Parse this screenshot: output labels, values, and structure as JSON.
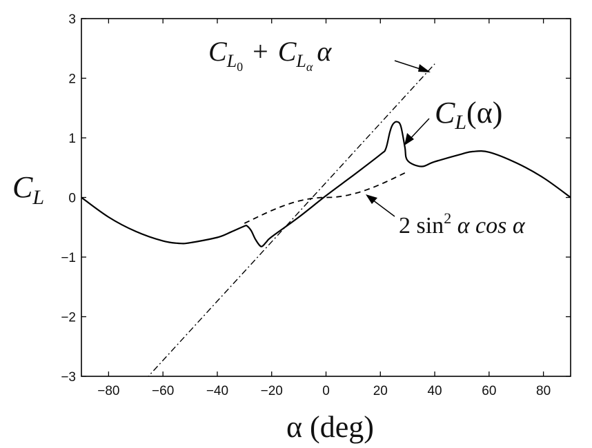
{
  "chart_data": {
    "type": "line",
    "title": "",
    "xlabel": "α (deg)",
    "ylabel": "C_L",
    "xlim": [
      -90,
      90
    ],
    "ylim": [
      -3,
      3
    ],
    "xticks": [
      -80,
      -60,
      -40,
      -20,
      0,
      20,
      40,
      60,
      80
    ],
    "yticks": [
      -3,
      -2,
      -1,
      0,
      1,
      2,
      3
    ],
    "xtick_labels": [
      "−80",
      "−60",
      "−40",
      "−20",
      "0",
      "20",
      "40",
      "60",
      "80"
    ],
    "ytick_labels": [
      "−3",
      "−2",
      "−1",
      "0",
      "1",
      "2",
      "3"
    ],
    "grid": false,
    "series": [
      {
        "name": "C_L(α)",
        "style": "solid",
        "x": [
          -90,
          -80,
          -70,
          -60,
          -54,
          -50,
          -40,
          -35,
          -30,
          -29,
          -27.5,
          -26,
          -24.5,
          -23.5,
          -22,
          -20,
          -10,
          0,
          10,
          20,
          22,
          23.5,
          24.5,
          26,
          27.5,
          29,
          30,
          35,
          40,
          50,
          54,
          60,
          70,
          80,
          90
        ],
        "y": [
          0,
          -0.33,
          -0.57,
          -0.73,
          -0.77,
          -0.76,
          -0.67,
          -0.58,
          -0.48,
          -0.48,
          -0.56,
          -0.7,
          -0.8,
          -0.82,
          -0.75,
          -0.66,
          -0.33,
          0.03,
          0.37,
          0.72,
          0.82,
          1.1,
          1.22,
          1.27,
          1.2,
          0.85,
          0.62,
          0.52,
          0.6,
          0.73,
          0.77,
          0.76,
          0.58,
          0.33,
          0
        ]
      },
      {
        "name": "C_{L0} + C_{Lα} α",
        "style": "dashdot",
        "x": [
          -70,
          40
        ],
        "y": [
          -3.23,
          2.24
        ]
      },
      {
        "name": "2 sin² α cos α",
        "style": "dashed",
        "x": [
          -30,
          -20,
          -10,
          0,
          10,
          20,
          30
        ],
        "y": [
          -0.43,
          -0.22,
          -0.06,
          0,
          0.06,
          0.22,
          0.43
        ]
      }
    ],
    "annotations": {
      "linear": {
        "label_main": "C",
        "sub1": "L",
        "sub2": "0",
        "plus": "+",
        "label_main2": "C",
        "sub3": "L",
        "sub4": "α",
        "tail": "α"
      },
      "cl": {
        "label_main": "C",
        "sub": "L",
        "tail": "(α)"
      },
      "sin": {
        "text_a": "2 sin",
        "sup": "2",
        "text_b": " α cos α"
      }
    }
  }
}
